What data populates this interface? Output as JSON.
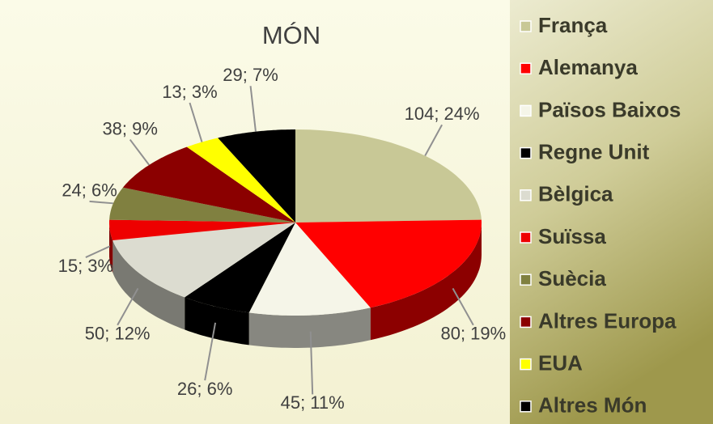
{
  "chart_data": {
    "type": "pie",
    "title": "MÓN",
    "categories": [
      "França",
      "Alemanya",
      "Països Baixos",
      "Regne Unit",
      "Bèlgica",
      "Suïssa",
      "Suècia",
      "Altres Europa",
      "EUA",
      "Altres Món"
    ],
    "values": [
      104,
      80,
      45,
      26,
      50,
      15,
      24,
      38,
      13,
      29
    ],
    "value_labels": [
      "104; 24%",
      "80; 19%",
      "45; 11%",
      "26; 6%",
      "50; 12%",
      "15; 3%",
      "24; 6%",
      "38; 9%",
      "13; 3%",
      "29; 7%"
    ],
    "colors": [
      "#c8c896",
      "#ff0000",
      "#f5f5e8",
      "#000000",
      "#dcdcd0",
      "#ee0000",
      "#808040",
      "#8b0000",
      "#ffff00",
      "#000000"
    ],
    "legend": "right"
  }
}
